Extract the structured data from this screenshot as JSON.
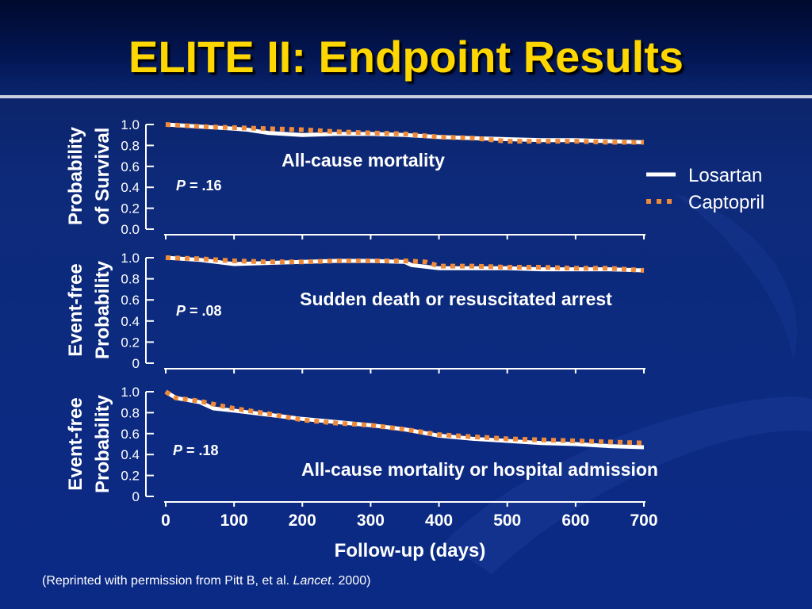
{
  "title": "ELITE II: Endpoint Results",
  "footnote": {
    "before": "(Reprinted with permission from Pitt B, et al. ",
    "journal": "Lancet",
    "after": ". 2000)"
  },
  "colors": {
    "losartan": "#ffffff",
    "captopril": "#ef8a3a",
    "title": "#ffd700"
  },
  "legend": {
    "placement": "top-right",
    "items": [
      {
        "label": "Losartan",
        "style": "solid"
      },
      {
        "label": "Captopril",
        "style": "dotted"
      }
    ]
  },
  "chart_data": [
    {
      "type": "line",
      "title": "All-cause mortality",
      "ylabel": [
        "Probability",
        "of Survival"
      ],
      "p_prefix": "P",
      "p_value": " = .16",
      "ylim": [
        0,
        1.0
      ],
      "yticks": [
        "1.0",
        "0.8",
        "0.6",
        "0.4",
        "0.2",
        "0.0"
      ],
      "xlim": [
        0,
        700
      ],
      "series": [
        {
          "name": "Losartan",
          "x": [
            0,
            50,
            100,
            120,
            150,
            200,
            250,
            300,
            350,
            400,
            450,
            500,
            550,
            600,
            650,
            700
          ],
          "y": [
            1.0,
            0.98,
            0.96,
            0.95,
            0.92,
            0.9,
            0.91,
            0.91,
            0.9,
            0.88,
            0.87,
            0.86,
            0.85,
            0.85,
            0.84,
            0.83
          ]
        },
        {
          "name": "Captopril",
          "x": [
            0,
            50,
            100,
            150,
            200,
            250,
            300,
            350,
            400,
            450,
            500,
            550,
            600,
            650,
            700
          ],
          "y": [
            1.0,
            0.98,
            0.97,
            0.96,
            0.95,
            0.93,
            0.92,
            0.91,
            0.88,
            0.87,
            0.84,
            0.84,
            0.84,
            0.83,
            0.83
          ]
        }
      ]
    },
    {
      "type": "line",
      "title": "Sudden death or resuscitated arrest",
      "ylabel": [
        "Event-free",
        "Probability"
      ],
      "p_prefix": "P",
      "p_value": " = .08",
      "ylim": [
        0,
        1.0
      ],
      "yticks": [
        "1.0",
        "0.8",
        "0.6",
        "0.4",
        "0.2",
        "0"
      ],
      "xlim": [
        0,
        700
      ],
      "series": [
        {
          "name": "Losartan",
          "x": [
            0,
            50,
            100,
            150,
            200,
            250,
            300,
            350,
            360,
            400,
            450,
            500,
            550,
            600,
            650,
            700
          ],
          "y": [
            1.0,
            0.98,
            0.94,
            0.95,
            0.96,
            0.97,
            0.97,
            0.96,
            0.93,
            0.9,
            0.9,
            0.9,
            0.89,
            0.89,
            0.89,
            0.88
          ]
        },
        {
          "name": "Captopril",
          "x": [
            0,
            50,
            100,
            150,
            200,
            250,
            300,
            350,
            380,
            400,
            450,
            500,
            550,
            600,
            650,
            700
          ],
          "y": [
            1.0,
            0.99,
            0.97,
            0.96,
            0.96,
            0.97,
            0.97,
            0.97,
            0.96,
            0.92,
            0.92,
            0.91,
            0.91,
            0.9,
            0.9,
            0.88
          ]
        }
      ]
    },
    {
      "type": "line",
      "title": "All-cause mortality or hospital admission",
      "ylabel": [
        "Event-free",
        "Probability"
      ],
      "p_prefix": "P",
      "p_value": " = .18",
      "ylim": [
        0,
        1.0
      ],
      "yticks": [
        "1.0",
        "0.8",
        "0.6",
        "0.4",
        "0.2",
        "0"
      ],
      "xlim": [
        0,
        700
      ],
      "xticks": [
        "0",
        "100",
        "200",
        "300",
        "400",
        "500",
        "600",
        "700"
      ],
      "xlabel": "Follow-up (days)",
      "series": [
        {
          "name": "Losartan",
          "x": [
            0,
            15,
            50,
            70,
            100,
            150,
            200,
            250,
            300,
            350,
            400,
            450,
            500,
            550,
            600,
            650,
            700
          ],
          "y": [
            1.0,
            0.94,
            0.9,
            0.84,
            0.82,
            0.78,
            0.74,
            0.71,
            0.68,
            0.64,
            0.58,
            0.55,
            0.53,
            0.51,
            0.5,
            0.48,
            0.47
          ]
        },
        {
          "name": "Captopril",
          "x": [
            0,
            15,
            50,
            70,
            100,
            150,
            200,
            250,
            300,
            350,
            400,
            450,
            500,
            550,
            600,
            650,
            700
          ],
          "y": [
            1.0,
            0.94,
            0.91,
            0.88,
            0.84,
            0.79,
            0.73,
            0.7,
            0.68,
            0.64,
            0.59,
            0.57,
            0.55,
            0.54,
            0.53,
            0.52,
            0.51
          ]
        }
      ]
    }
  ]
}
